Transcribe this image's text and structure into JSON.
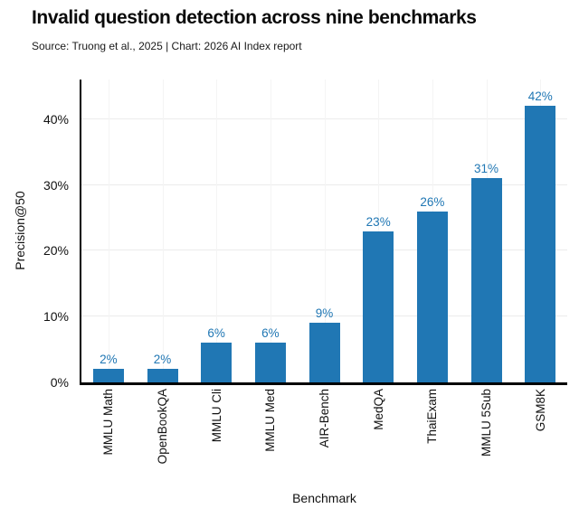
{
  "header": {
    "title": "Invalid question detection across nine benchmarks",
    "subtitle": "Source: Truong et al., 2025 | Chart: 2026 AI Index report"
  },
  "chart_data": {
    "type": "bar",
    "title": "Invalid question detection across nine benchmarks",
    "xlabel": "Benchmark",
    "ylabel": "Precision@50",
    "categories": [
      "MMLU Math",
      "OpenBookQA",
      "MMLU Cli",
      "MMLU Med",
      "AIR-Bench",
      "MedQA",
      "ThaiExam",
      "MMLU 5Sub",
      "GSM8K"
    ],
    "values": [
      2,
      2,
      6,
      6,
      9,
      23,
      26,
      31,
      42
    ],
    "value_labels": [
      "2%",
      "2%",
      "6%",
      "6%",
      "9%",
      "23%",
      "26%",
      "31%",
      "42%"
    ],
    "ylim": [
      0,
      46
    ],
    "yticks": [
      {
        "value": 0,
        "label": "0%"
      },
      {
        "value": 10,
        "label": "10%"
      },
      {
        "value": 20,
        "label": "20%"
      },
      {
        "value": 30,
        "label": "30%"
      },
      {
        "value": 40,
        "label": "40%"
      }
    ],
    "grid": "on",
    "legend": "none",
    "bar_color": "#2077B4",
    "value_label_color": "#2077B4",
    "axis_color": "#000000",
    "gridline_color": "#ececec"
  }
}
